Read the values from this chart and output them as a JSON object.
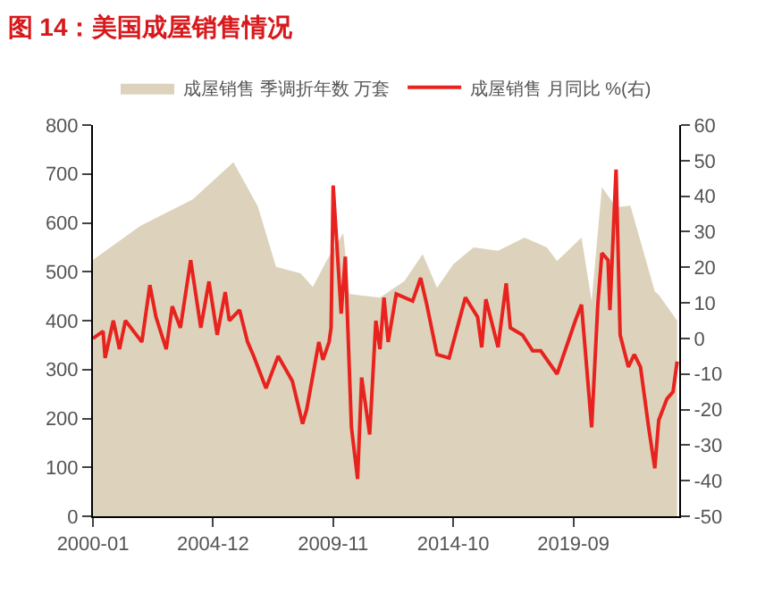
{
  "chart_data": {
    "type": "area",
    "title": "图 14：美国成屋销售情况",
    "xlim": [
      "2000-01",
      "2024-01"
    ],
    "xticks": [
      {
        "value": "2000-01",
        "label": "2000-01"
      },
      {
        "value": "2004-12",
        "label": "2004-12"
      },
      {
        "value": "2009-11",
        "label": "2009-11"
      },
      {
        "value": "2014-10",
        "label": "2014-10"
      },
      {
        "value": "2019-09",
        "label": "2019-09"
      }
    ],
    "ylim": [
      0,
      800
    ],
    "yticks": [
      0,
      100,
      200,
      300,
      400,
      500,
      600,
      700,
      800
    ],
    "y2lim": [
      -50,
      60
    ],
    "y2ticks": [
      -50,
      -40,
      -30,
      -20,
      -10,
      0,
      10,
      20,
      30,
      40,
      50,
      60
    ],
    "legend": "top",
    "series": [
      {
        "name": "成屋销售 季调折年数 万套",
        "color": "#ddd3bc",
        "x": [
          "2000-01",
          "2001-12",
          "2004-02",
          "2005-10",
          "2006-10",
          "2007-07",
          "2008-07",
          "2009-01",
          "2009-08",
          "2010-04",
          "2010-07",
          "2010-10",
          "2011-10",
          "2012-10",
          "2013-07",
          "2014-02",
          "2014-10",
          "2015-08",
          "2016-08",
          "2017-09",
          "2018-08",
          "2019-01",
          "2020-01",
          "2020-06",
          "2020-11",
          "2021-06",
          "2022-01",
          "2023-01",
          "2023-03",
          "2023-10",
          "2023-12"
        ],
        "values": [
          524,
          593,
          648,
          724,
          634,
          510,
          497,
          469,
          524,
          579,
          455,
          453,
          447,
          481,
          536,
          467,
          515,
          550,
          543,
          570,
          550,
          522,
          570,
          440,
          673,
          632,
          635,
          460,
          453,
          412,
          400
        ]
      },
      {
        "name": "成屋销售 月同比 %(右)",
        "type": "line",
        "axis": "y2",
        "color": "#e8231f",
        "x": [
          "2000-01",
          "2000-06",
          "2000-07",
          "2000-11",
          "2001-02",
          "2001-05",
          "2002-01",
          "2002-05",
          "2002-08",
          "2003-01",
          "2003-04",
          "2003-08",
          "2004-01",
          "2004-06",
          "2004-10",
          "2005-02",
          "2005-06",
          "2005-08",
          "2006-01",
          "2006-05",
          "2006-08",
          "2007-02",
          "2007-08",
          "2008-01",
          "2008-03",
          "2008-08",
          "2008-10",
          "2009-04",
          "2009-06",
          "2009-09",
          "2009-10",
          "2009-11",
          "2010-03",
          "2010-05",
          "2010-08",
          "2010-11",
          "2011-01",
          "2011-05",
          "2011-08",
          "2011-10",
          "2011-12",
          "2012-02",
          "2012-06",
          "2013-02",
          "2013-06",
          "2013-09",
          "2014-02",
          "2014-08",
          "2015-04",
          "2015-10",
          "2015-12",
          "2016-02",
          "2016-08",
          "2016-12",
          "2017-02",
          "2017-08",
          "2018-01",
          "2018-05",
          "2019-01",
          "2019-10",
          "2020-01",
          "2020-06",
          "2020-09",
          "2020-11",
          "2021-02",
          "2021-03",
          "2021-06",
          "2021-08",
          "2021-12",
          "2022-03",
          "2022-06",
          "2022-10",
          "2023-01",
          "2023-03",
          "2023-07",
          "2023-10",
          "2023-12"
        ],
        "values": [
          0,
          2,
          -5.5,
          5,
          -3,
          5,
          -1,
          15,
          6,
          -3,
          9,
          3,
          22,
          3,
          16,
          1,
          13,
          5,
          8,
          -1,
          -5,
          -14,
          -5,
          -10,
          -12,
          -24,
          -20,
          -1,
          -6,
          -1,
          3,
          43,
          7,
          23,
          -25,
          -39.5,
          -11,
          -27,
          5,
          -3,
          11.5,
          -1,
          12.5,
          10.5,
          17,
          9.5,
          -4.5,
          -5.5,
          11.5,
          6,
          -2.5,
          11,
          -2.5,
          15.5,
          3,
          1,
          -3.5,
          -3.5,
          -10,
          5,
          9.5,
          -25,
          9.5,
          24,
          22,
          8,
          47.5,
          1,
          -8,
          -4.5,
          -8,
          -25,
          -36.5,
          -23,
          -17,
          -15,
          -6.5
        ]
      }
    ]
  }
}
